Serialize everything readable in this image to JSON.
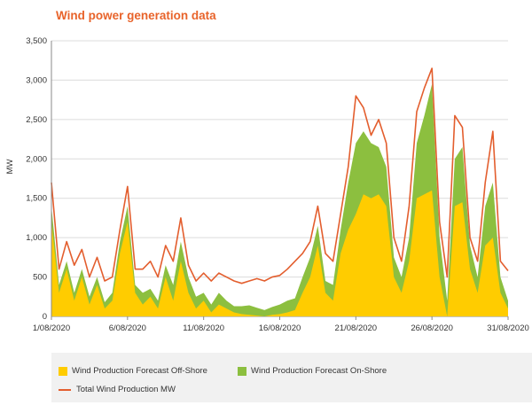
{
  "title": "Wind power generation data",
  "chart_data": {
    "type": "area",
    "ylabel": "MW",
    "ylim": [
      0,
      3500
    ],
    "yticks": [
      0,
      500,
      1000,
      1500,
      2000,
      2500,
      3000,
      3500
    ],
    "ytick_labels": [
      "0",
      "500",
      "1,000",
      "1,500",
      "2,000",
      "2,500",
      "3,000",
      "3,500"
    ],
    "xlim": [
      1,
      31
    ],
    "xticks": [
      1,
      6,
      11,
      16,
      21,
      26,
      31
    ],
    "xtick_labels": [
      "1/08/2020",
      "6/08/2020",
      "11/08/2020",
      "16/08/2020",
      "21/08/2020",
      "26/08/2020",
      "31/08/2020"
    ],
    "x": [
      1,
      1.5,
      2,
      2.5,
      3,
      3.5,
      4,
      4.5,
      5,
      5.5,
      6,
      6.5,
      7,
      7.5,
      8,
      8.5,
      9,
      9.5,
      10,
      10.5,
      11,
      11.5,
      12,
      12.5,
      13,
      13.5,
      14,
      14.5,
      15,
      15.5,
      16,
      16.5,
      17,
      17.5,
      18,
      18.5,
      19,
      19.5,
      20,
      20.5,
      21,
      21.5,
      22,
      22.5,
      23,
      23.5,
      24,
      24.5,
      25,
      25.5,
      26,
      26.5,
      27,
      27.5,
      28,
      28.5,
      29,
      29.5,
      30,
      30.5,
      31
    ],
    "series": [
      {
        "name": "Wind Production Forecast Off-Shore",
        "color": "#ffcc00",
        "values": [
          1200,
          300,
          600,
          200,
          500,
          150,
          400,
          100,
          200,
          800,
          1200,
          300,
          150,
          250,
          100,
          500,
          200,
          700,
          300,
          100,
          200,
          50,
          150,
          100,
          50,
          30,
          20,
          10,
          0,
          20,
          30,
          50,
          80,
          300,
          500,
          900,
          300,
          200,
          800,
          1100,
          1300,
          1550,
          1500,
          1550,
          1400,
          500,
          300,
          700,
          1500,
          1550,
          1600,
          500,
          0,
          1400,
          1450,
          600,
          300,
          900,
          1000,
          300,
          100
        ]
      },
      {
        "name": "Wind Production Forecast On-Shore",
        "color": "#8cbf3f",
        "values": [
          200,
          100,
          100,
          100,
          100,
          100,
          100,
          80,
          100,
          150,
          200,
          100,
          150,
          100,
          100,
          150,
          200,
          250,
          200,
          150,
          100,
          100,
          150,
          100,
          80,
          100,
          120,
          100,
          80,
          100,
          120,
          150,
          150,
          200,
          250,
          250,
          150,
          200,
          300,
          600,
          900,
          800,
          700,
          600,
          500,
          250,
          200,
          300,
          700,
          1000,
          1350,
          500,
          200,
          600,
          700,
          300,
          200,
          500,
          700,
          200,
          100
        ]
      },
      {
        "name": "Total Wind Production MW",
        "color": "#e35e2e",
        "values": [
          1700,
          600,
          950,
          650,
          850,
          500,
          750,
          450,
          500,
          1100,
          1650,
          600,
          600,
          700,
          500,
          900,
          700,
          1250,
          650,
          450,
          550,
          450,
          550,
          500,
          450,
          420,
          450,
          480,
          450,
          500,
          520,
          600,
          700,
          800,
          950,
          1400,
          800,
          700,
          1300,
          1900,
          2800,
          2650,
          2300,
          2500,
          2200,
          1000,
          700,
          1400,
          2600,
          2900,
          3150,
          1200,
          500,
          2550,
          2400,
          1000,
          700,
          1700,
          2350,
          700,
          580
        ]
      }
    ],
    "legend": "bottom"
  }
}
